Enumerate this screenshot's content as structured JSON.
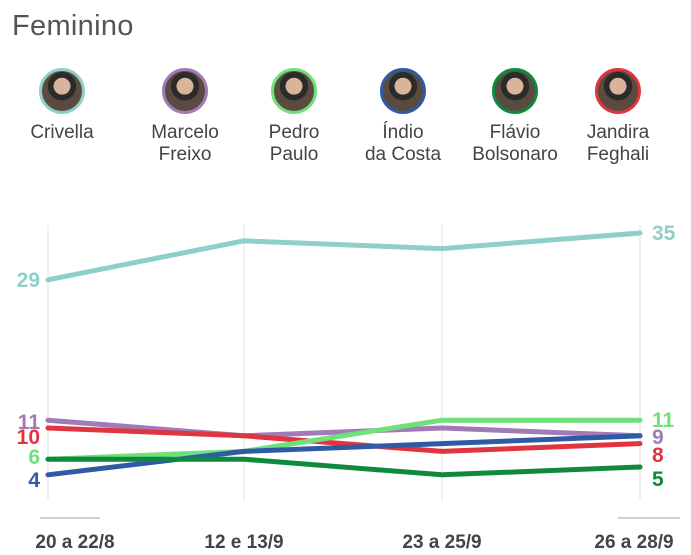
{
  "title": "Feminino",
  "candidates": [
    {
      "name_line1": "Crivella",
      "name_line2": "",
      "color": "#8ecfc9"
    },
    {
      "name_line1": "Marcelo",
      "name_line2": "Freixo",
      "color": "#a07bb8"
    },
    {
      "name_line1": "Pedro",
      "name_line2": "Paulo",
      "color": "#6fe07a"
    },
    {
      "name_line1": "Índio",
      "name_line2": "da Costa",
      "color": "#2e5aa6"
    },
    {
      "name_line1": "Flávio",
      "name_line2": "Bolsonaro",
      "color": "#0f8a3c"
    },
    {
      "name_line1": "Jandira",
      "name_line2": "Feghali",
      "color": "#e0343e"
    }
  ],
  "chart_data": {
    "type": "line",
    "title": "Feminino",
    "xlabel": "",
    "ylabel": "",
    "categories": [
      "20 a 22/8",
      "12 e 13/9",
      "23 a 25/9",
      "26 a 28/9"
    ],
    "ylim": [
      0,
      37
    ],
    "grid": "vertical",
    "series": [
      {
        "name": "Crivella",
        "color": "#8ecfc9",
        "values": [
          29,
          34,
          33,
          35
        ],
        "start_label": "29",
        "end_label": "35"
      },
      {
        "name": "Marcelo Freixo",
        "color": "#a07bb8",
        "values": [
          11,
          9,
          10,
          9
        ],
        "start_label": "11",
        "end_label": "9"
      },
      {
        "name": "Jandira Feghali",
        "color": "#e0343e",
        "values": [
          10,
          9,
          7,
          8
        ],
        "start_label": "10",
        "end_label": "8"
      },
      {
        "name": "Pedro Paulo",
        "color": "#6fe07a",
        "values": [
          6,
          7,
          11,
          11
        ],
        "start_label": "6",
        "end_label": "11"
      },
      {
        "name": "Índio da Costa",
        "color": "#2e5aa6",
        "values": [
          4,
          7,
          8,
          9
        ],
        "start_label": "4",
        "end_label": ""
      },
      {
        "name": "Flávio Bolsonaro",
        "color": "#0f8a3c",
        "values": [
          6,
          6,
          4,
          5
        ],
        "start_label": "",
        "end_label": "5"
      }
    ]
  }
}
